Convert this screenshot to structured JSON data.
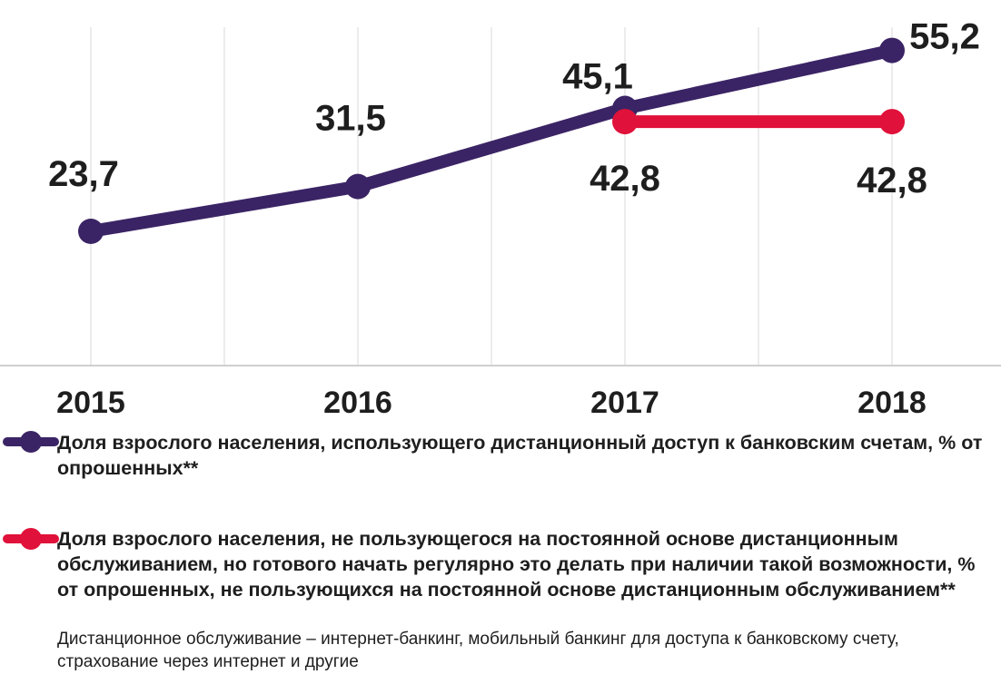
{
  "chart_data": {
    "type": "line",
    "categories": [
      "2015",
      "2016",
      "2017",
      "2018"
    ],
    "series": [
      {
        "name": "Доля взрослого населения, использующего дистанционный доступ к банковским счетам, % от опрошенных**",
        "color": "#3b2465",
        "x": [
          "2015",
          "2016",
          "2017",
          "2018"
        ],
        "values": [
          23.7,
          31.5,
          45.1,
          55.2
        ],
        "labels": [
          "23,7",
          "31,5",
          "45,1",
          "55,2"
        ]
      },
      {
        "name": "Доля взрослого населения, не пользующегося на постоянной основе дистанционным обслуживанием, но  готового начать регулярно это делать при наличии такой возможности, % от опрошенных, не пользующихся на постоянной основе дистанционным обслуживанием**",
        "color": "#e0113a",
        "x": [
          "2017",
          "2018"
        ],
        "values": [
          42.8,
          42.8
        ],
        "labels": [
          "42,8",
          "42,8"
        ]
      }
    ],
    "grid": "vertical",
    "legend_placement": "bottom"
  },
  "footnote": "Дистанционное обслуживание – интернет-банкинг, мобильный банкинг для доступа к банковскому счету, страхование через интернет и другие"
}
